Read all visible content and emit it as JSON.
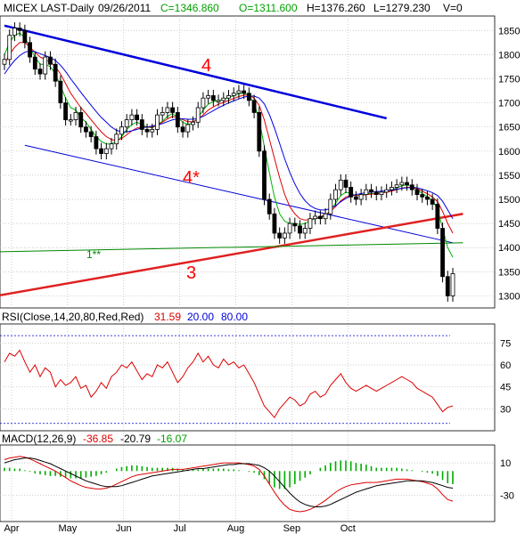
{
  "header": {
    "symbol": "MICEX LAST-Daily",
    "date": "09/26/2011",
    "close": "C=1346.860",
    "open": "O=1311.600",
    "high": "H=1376.260",
    "low": "L=1279.230",
    "volume": "V=0"
  },
  "chart_data": [
    {
      "type": "line",
      "panel": "price",
      "yticks": [
        1850,
        1800,
        1750,
        1700,
        1650,
        1600,
        1550,
        1500,
        1450,
        1400,
        1350,
        1300
      ],
      "ylim": [
        1275,
        1880
      ],
      "xticks": [
        "Apr",
        "May",
        "Jun",
        "Jul",
        "Aug",
        "Sep",
        "Oct"
      ],
      "candles": {
        "days": [
          0,
          2,
          4,
          6,
          8,
          10,
          12,
          14,
          16,
          18,
          20,
          22,
          24,
          26,
          28,
          30,
          32,
          34,
          36,
          38,
          40,
          42,
          44,
          46,
          48,
          50,
          52,
          54,
          56,
          58,
          60,
          62,
          64,
          66,
          68,
          70,
          72,
          74,
          76,
          78,
          80,
          82,
          84,
          86,
          88,
          90,
          92,
          94,
          96,
          98,
          100,
          102,
          104,
          106,
          108,
          110,
          112,
          114,
          116,
          118,
          120,
          122,
          124,
          126,
          128,
          130,
          132,
          134,
          136,
          138,
          140,
          142,
          144,
          146,
          148,
          150,
          152,
          154,
          156,
          158,
          160,
          162,
          164,
          166,
          168,
          170,
          172,
          174,
          176
        ],
        "close": [
          1790,
          1840,
          1855,
          1850,
          1825,
          1795,
          1770,
          1760,
          1795,
          1780,
          1745,
          1700,
          1665,
          1665,
          1680,
          1650,
          1640,
          1630,
          1605,
          1595,
          1605,
          1615,
          1635,
          1650,
          1665,
          1675,
          1665,
          1645,
          1640,
          1645,
          1675,
          1680,
          1690,
          1680,
          1650,
          1640,
          1655,
          1660,
          1690,
          1710,
          1715,
          1705,
          1705,
          1710,
          1715,
          1720,
          1725,
          1720,
          1705,
          1680,
          1600,
          1500,
          1470,
          1430,
          1420,
          1430,
          1450,
          1445,
          1430,
          1440,
          1460,
          1465,
          1460,
          1470,
          1500,
          1520,
          1540,
          1525,
          1505,
          1500,
          1510,
          1520,
          1515,
          1510,
          1515,
          1520,
          1525,
          1530,
          1535,
          1530,
          1520,
          1510,
          1505,
          1500,
          1490,
          1440,
          1340,
          1300,
          1346
        ]
      },
      "series": [
        {
          "name": "",
          "color": "#00b000",
          "values": [
            1800,
            1825,
            1840,
            1845,
            1835,
            1815,
            1795,
            1780,
            1780,
            1775,
            1760,
            1735,
            1710,
            1690,
            1685,
            1670,
            1660,
            1645,
            1630,
            1620,
            1615,
            1615,
            1620,
            1630,
            1645,
            1655,
            1660,
            1655,
            1650,
            1648,
            1655,
            1662,
            1672,
            1678,
            1670,
            1660,
            1655,
            1658,
            1670,
            1685,
            1697,
            1703,
            1705,
            1707,
            1711,
            1715,
            1719,
            1720,
            1715,
            1700,
            1665,
            1610,
            1555,
            1505,
            1470,
            1455,
            1450,
            1450,
            1448,
            1450,
            1456,
            1460,
            1462,
            1466,
            1478,
            1492,
            1508,
            1515,
            1512,
            1508,
            1508,
            1512,
            1512,
            1512,
            1514,
            1516,
            1520,
            1524,
            1528,
            1530,
            1527,
            1520,
            1512,
            1506,
            1498,
            1480,
            1440,
            1400,
            1380
          ]
        },
        {
          "name": "",
          "color": "#e00000",
          "values": [
            1780,
            1800,
            1815,
            1825,
            1825,
            1815,
            1805,
            1795,
            1790,
            1785,
            1775,
            1760,
            1740,
            1720,
            1705,
            1690,
            1678,
            1665,
            1652,
            1640,
            1630,
            1624,
            1622,
            1626,
            1634,
            1642,
            1648,
            1650,
            1650,
            1650,
            1654,
            1660,
            1667,
            1672,
            1670,
            1665,
            1661,
            1661,
            1666,
            1675,
            1685,
            1692,
            1697,
            1701,
            1705,
            1709,
            1713,
            1716,
            1716,
            1710,
            1695,
            1665,
            1625,
            1585,
            1545,
            1510,
            1485,
            1470,
            1460,
            1457,
            1458,
            1461,
            1464,
            1468,
            1475,
            1485,
            1497,
            1505,
            1508,
            1508,
            1508,
            1510,
            1511,
            1512,
            1513,
            1515,
            1517,
            1520,
            1523,
            1525,
            1525,
            1522,
            1517,
            1512,
            1505,
            1495,
            1475,
            1450,
            1430
          ]
        },
        {
          "name": "",
          "color": "#0000e0",
          "values": [
            1760,
            1775,
            1788,
            1798,
            1805,
            1808,
            1806,
            1802,
            1798,
            1794,
            1788,
            1778,
            1765,
            1750,
            1736,
            1722,
            1708,
            1695,
            1682,
            1670,
            1660,
            1650,
            1643,
            1640,
            1640,
            1642,
            1645,
            1648,
            1650,
            1652,
            1654,
            1657,
            1661,
            1665,
            1667,
            1667,
            1666,
            1666,
            1668,
            1672,
            1678,
            1684,
            1690,
            1695,
            1700,
            1704,
            1708,
            1712,
            1714,
            1714,
            1710,
            1698,
            1676,
            1648,
            1616,
            1584,
            1556,
            1532,
            1512,
            1497,
            1487,
            1481,
            1478,
            1478,
            1481,
            1487,
            1495,
            1502,
            1507,
            1510,
            1512,
            1514,
            1515,
            1516,
            1517,
            1518,
            1519,
            1521,
            1523,
            1524,
            1525,
            1524,
            1521,
            1518,
            1514,
            1508,
            1496,
            1478,
            1460
          ]
        }
      ],
      "annotations": [
        {
          "label": "4",
          "color": "#ff0000"
        },
        {
          "label": "4*",
          "color": "#ff0000"
        },
        {
          "label": "3",
          "color": "#ff0000"
        },
        {
          "label": "1**",
          "color": "#008800"
        }
      ],
      "trendlines": [
        {
          "name": "",
          "color": "#0000dd",
          "from": [
            0,
            1860
          ],
          "to": [
            150,
            1668
          ]
        },
        {
          "name": "",
          "color": "#0000dd",
          "from": [
            8,
            1612
          ],
          "to": [
            176,
            1410
          ]
        },
        {
          "name": "",
          "color": "#e02020",
          "from": [
            -16,
            1288
          ],
          "to": [
            180,
            1470
          ]
        },
        {
          "name": "",
          "color": "#008800",
          "from": [
            -16,
            1390
          ],
          "to": [
            180,
            1410
          ]
        }
      ]
    },
    {
      "type": "line",
      "panel": "rsi",
      "title": "RSI(Close,14,20,80,Red,Red)",
      "values_text": {
        "rsi": "31.59",
        "low": "20.00",
        "high": "80.00"
      },
      "ylim": [
        15,
        88
      ],
      "yticks": [
        75,
        60,
        45,
        30
      ],
      "levels": [
        20,
        80
      ],
      "series": [
        {
          "name": "",
          "color": "#dd0000",
          "values": [
            62,
            68,
            66,
            70,
            62,
            55,
            60,
            52,
            58,
            55,
            45,
            50,
            46,
            48,
            52,
            44,
            46,
            38,
            42,
            48,
            44,
            52,
            55,
            60,
            58,
            62,
            56,
            50,
            54,
            52,
            60,
            58,
            62,
            55,
            48,
            52,
            58,
            62,
            68,
            62,
            66,
            60,
            58,
            64,
            60,
            62,
            58,
            60,
            54,
            48,
            40,
            32,
            28,
            24,
            30,
            34,
            38,
            36,
            32,
            34,
            40,
            42,
            38,
            40,
            46,
            50,
            54,
            48,
            44,
            42,
            44,
            46,
            44,
            42,
            44,
            46,
            48,
            50,
            52,
            50,
            48,
            44,
            42,
            40,
            38,
            33,
            28,
            31,
            32
          ]
        }
      ]
    },
    {
      "type": "bar",
      "panel": "macd",
      "title": "MACD(12,26,9)",
      "values_text": {
        "macd": "-36.85",
        "signal": "-20.79",
        "hist": "-16.07"
      },
      "ylim": [
        -62,
        32
      ],
      "yticks": [
        10,
        -30
      ],
      "series": [
        {
          "name": "",
          "color": "#dd0000",
          "values": [
            14,
            16,
            17,
            18,
            17,
            15,
            12,
            9,
            6,
            3,
            0,
            -4,
            -8,
            -12,
            -15,
            -18,
            -20,
            -21,
            -22,
            -22,
            -21,
            -19,
            -16,
            -13,
            -10,
            -7,
            -5,
            -4,
            -3,
            -2,
            -1,
            0,
            1,
            2,
            2,
            2,
            3,
            4,
            5,
            6,
            7,
            8,
            9,
            10,
            10,
            10,
            10,
            9,
            8,
            6,
            2,
            -6,
            -16,
            -26,
            -35,
            -42,
            -47,
            -49,
            -50,
            -49,
            -47,
            -44,
            -40,
            -36,
            -31,
            -26,
            -22,
            -19,
            -17,
            -16,
            -15,
            -14,
            -14,
            -14,
            -13,
            -12,
            -11,
            -10,
            -10,
            -10,
            -11,
            -12,
            -13,
            -15,
            -17,
            -22,
            -29,
            -35,
            -37
          ]
        },
        {
          "name": "",
          "color": "#000000",
          "values": [
            10,
            12,
            14,
            15,
            16,
            16,
            15,
            13,
            11,
            9,
            6,
            3,
            0,
            -3,
            -6,
            -9,
            -12,
            -14,
            -16,
            -18,
            -19,
            -19,
            -19,
            -18,
            -16,
            -14,
            -12,
            -10,
            -8,
            -6,
            -5,
            -4,
            -3,
            -2,
            -1,
            0,
            1,
            2,
            3,
            3,
            4,
            5,
            6,
            7,
            8,
            8,
            9,
            9,
            9,
            8,
            7,
            4,
            0,
            -6,
            -13,
            -20,
            -27,
            -33,
            -38,
            -41,
            -43,
            -44,
            -44,
            -43,
            -41,
            -38,
            -35,
            -32,
            -29,
            -26,
            -24,
            -22,
            -20,
            -18,
            -17,
            -16,
            -15,
            -14,
            -13,
            -12,
            -12,
            -12,
            -12,
            -13,
            -14,
            -16,
            -18,
            -20,
            -21
          ]
        },
        {
          "name": "",
          "color": "#00aa00",
          "values": [
            4,
            4,
            3,
            3,
            1,
            -1,
            -3,
            -4,
            -5,
            -6,
            -6,
            -7,
            -8,
            -9,
            -9,
            -9,
            -8,
            -7,
            -6,
            -4,
            -2,
            0,
            3,
            5,
            6,
            7,
            7,
            6,
            5,
            4,
            4,
            4,
            4,
            4,
            3,
            2,
            2,
            2,
            2,
            3,
            3,
            3,
            3,
            3,
            2,
            2,
            1,
            0,
            -1,
            -2,
            -5,
            -10,
            -16,
            -20,
            -22,
            -22,
            -20,
            -16,
            -12,
            -8,
            -4,
            0,
            4,
            7,
            10,
            12,
            13,
            13,
            12,
            10,
            9,
            8,
            6,
            4,
            4,
            4,
            4,
            4,
            3,
            2,
            1,
            0,
            -1,
            -2,
            -3,
            -6,
            -11,
            -15,
            -16
          ]
        }
      ]
    }
  ]
}
